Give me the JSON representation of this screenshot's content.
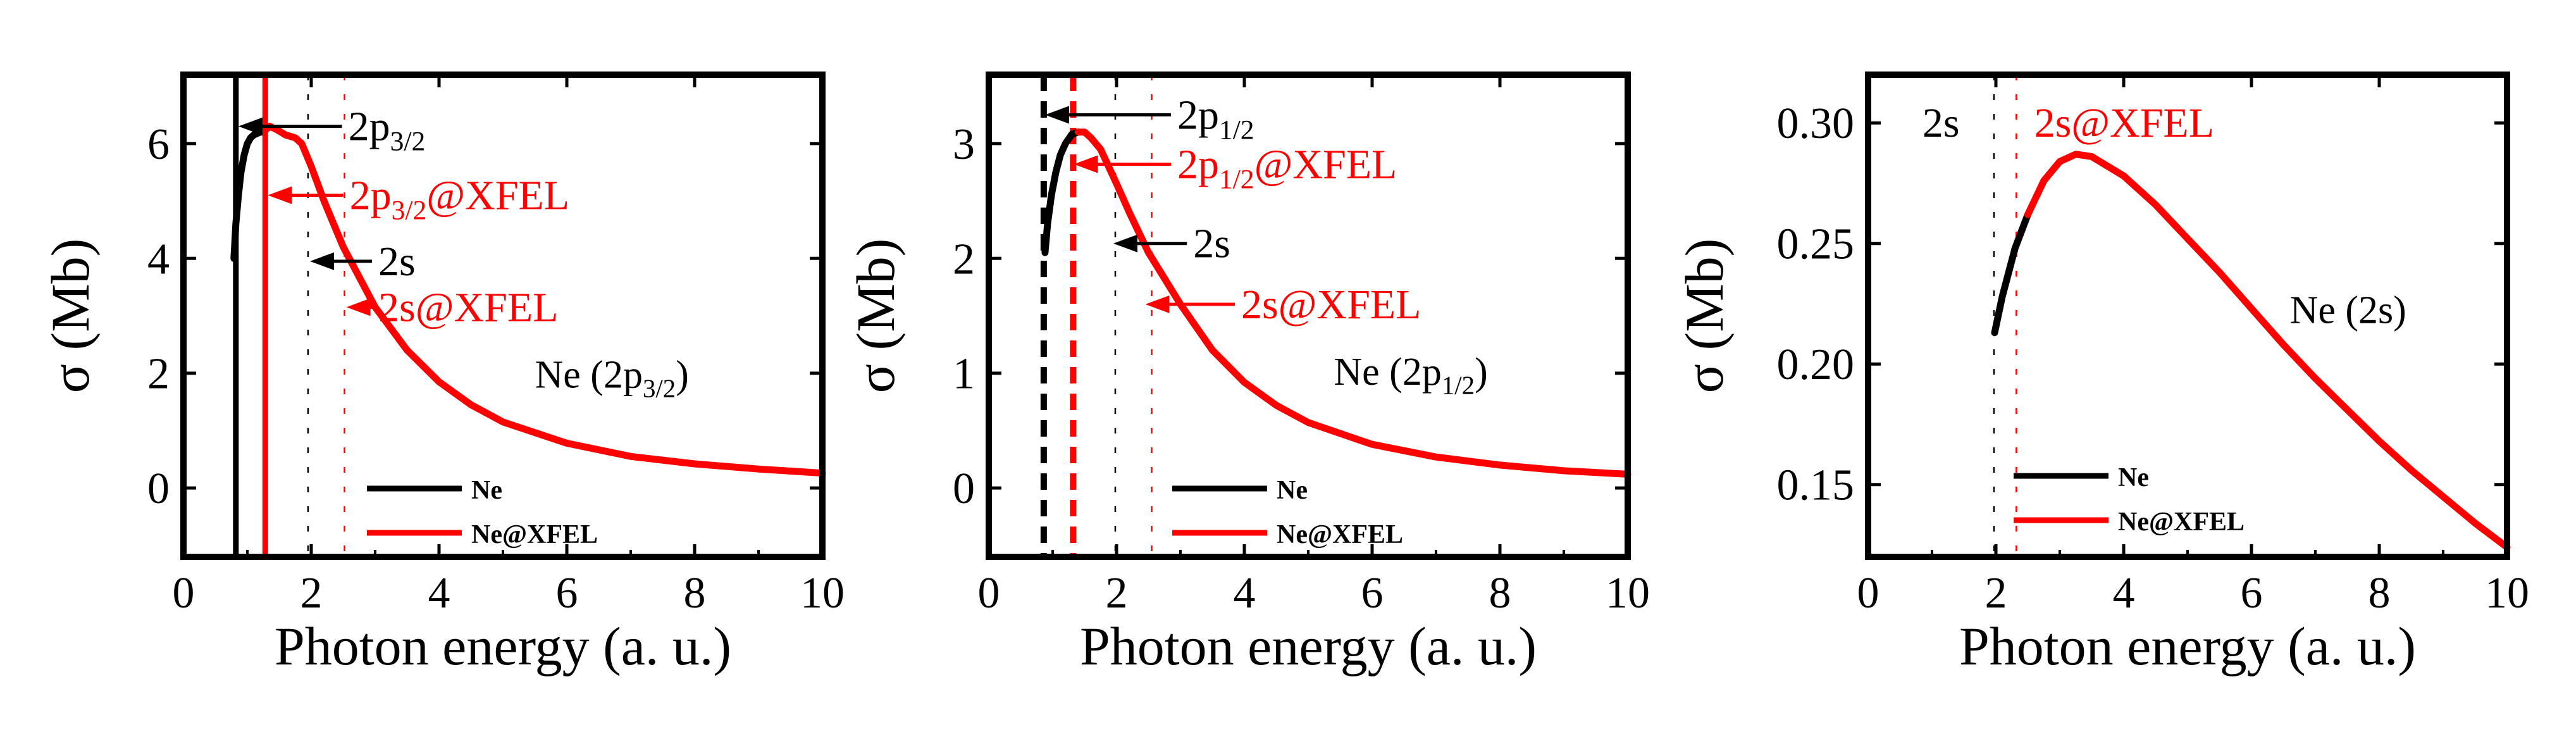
{
  "colors": {
    "ne": "#000000",
    "xfel": "#ff0000",
    "frame": "#000000",
    "background": "#ffffff"
  },
  "chart_data": [
    {
      "type": "line",
      "subplot": "left",
      "title": "",
      "xlabel": "Photon energy (a. u.)",
      "ylabel": "σ (Mb)",
      "xlim": [
        0,
        10
      ],
      "ylim": [
        -1.2,
        7.2
      ],
      "xticks": [
        0,
        2,
        4,
        6,
        8,
        10
      ],
      "yticks": [
        0,
        2,
        4,
        6
      ],
      "grid": false,
      "legend_position": "bottom-center",
      "series": [
        {
          "name": "Ne",
          "color": "#000000",
          "x": [
            0.79,
            0.82,
            0.86,
            0.9,
            0.95,
            1.0,
            1.05,
            1.1,
            1.2,
            1.25
          ],
          "y": [
            4.0,
            4.6,
            5.1,
            5.5,
            5.8,
            6.0,
            6.1,
            6.15,
            6.2,
            6.2
          ]
        },
        {
          "name": "Ne@XFEL",
          "color": "#ff0000",
          "x": [
            1.25,
            1.35,
            1.45,
            1.6,
            1.75,
            1.85,
            2.0,
            2.2,
            2.5,
            3.0,
            3.5,
            4.0,
            4.5,
            5.0,
            6.0,
            7.0,
            8.0,
            9.0,
            10.0
          ],
          "y": [
            6.2,
            6.3,
            6.25,
            6.15,
            6.1,
            6.0,
            5.6,
            5.0,
            4.2,
            3.15,
            2.4,
            1.85,
            1.45,
            1.15,
            0.78,
            0.55,
            0.42,
            0.33,
            0.26
          ]
        }
      ],
      "vertical_lines": [
        {
          "x": 0.82,
          "style": "solid",
          "color": "#000000"
        },
        {
          "x": 1.28,
          "style": "solid",
          "color": "#ff0000"
        },
        {
          "x": 1.95,
          "style": "dashed",
          "color": "#000000"
        },
        {
          "x": 2.52,
          "style": "dashed",
          "color": "#ff0000"
        }
      ],
      "annotations": [
        {
          "base": "2p",
          "sub": "3/2",
          "suffix": "",
          "color": "#000000",
          "x": 2.58,
          "y": 6.3,
          "arrow_to_x": 0.86
        },
        {
          "base": "2p",
          "sub": "3/2",
          "suffix": "@XFEL",
          "color": "#ff0000",
          "x": 2.6,
          "y": 5.1,
          "arrow_to_x": 1.32
        },
        {
          "base": "2s",
          "sub": "",
          "suffix": "",
          "color": "#000000",
          "x": 3.05,
          "y": 3.95,
          "arrow_to_x": 1.98
        },
        {
          "base": "2s@XFEL",
          "sub": "",
          "suffix": "",
          "color": "#ff0000",
          "x": 3.05,
          "y": 3.15,
          "arrow_to_x": 2.55
        }
      ],
      "inset_label": {
        "base": "Ne (2p",
        "sub": "3/2",
        "suffix": ")",
        "x": 5.5,
        "y": 1.75
      },
      "legend": [
        "Ne",
        "Ne@XFEL"
      ]
    },
    {
      "type": "line",
      "subplot": "middle",
      "title": "",
      "xlabel": "Photon energy (a. u.)",
      "ylabel": "σ (Mb)",
      "xlim": [
        0,
        10
      ],
      "ylim": [
        -0.6,
        3.6
      ],
      "xticks": [
        0,
        2,
        4,
        6,
        8,
        10
      ],
      "yticks": [
        0,
        1,
        2,
        3
      ],
      "grid": false,
      "legend_position": "bottom-center",
      "series": [
        {
          "name": "Ne",
          "color": "#000000",
          "x": [
            0.88,
            0.92,
            0.98,
            1.05,
            1.12,
            1.2,
            1.3,
            1.4
          ],
          "y": [
            2.05,
            2.3,
            2.55,
            2.75,
            2.9,
            3.0,
            3.08,
            3.1
          ]
        },
        {
          "name": "Ne@XFEL",
          "color": "#ff0000",
          "x": [
            1.4,
            1.5,
            1.6,
            1.75,
            2.0,
            2.2,
            2.5,
            3.0,
            3.5,
            4.0,
            4.5,
            5.0,
            6.0,
            7.0,
            8.0,
            9.0,
            10.0
          ],
          "y": [
            3.1,
            3.1,
            3.05,
            2.95,
            2.65,
            2.4,
            2.05,
            1.6,
            1.2,
            0.92,
            0.72,
            0.57,
            0.38,
            0.27,
            0.2,
            0.15,
            0.12
          ]
        }
      ],
      "vertical_lines": [
        {
          "x": 0.86,
          "style": "dashed-thick",
          "color": "#000000"
        },
        {
          "x": 1.32,
          "style": "dashed-thick",
          "color": "#ff0000"
        },
        {
          "x": 1.98,
          "style": "dashed",
          "color": "#000000"
        },
        {
          "x": 2.55,
          "style": "dashed",
          "color": "#ff0000"
        }
      ],
      "annotations": [
        {
          "base": "2p",
          "sub": "1/2",
          "suffix": "",
          "color": "#000000",
          "x": 2.95,
          "y": 3.25,
          "arrow_to_x": 0.88
        },
        {
          "base": "2p",
          "sub": "1/2",
          "suffix": "@XFEL",
          "color": "#ff0000",
          "x": 2.95,
          "y": 2.82,
          "arrow_to_x": 1.33
        },
        {
          "base": "2s",
          "sub": "",
          "suffix": "",
          "color": "#000000",
          "x": 3.2,
          "y": 2.13,
          "arrow_to_x": 1.95
        },
        {
          "base": "2s@XFEL",
          "sub": "",
          "suffix": "",
          "color": "#ff0000",
          "x": 3.95,
          "y": 1.6,
          "arrow_to_x": 2.45
        }
      ],
      "inset_label": {
        "base": "Ne (2p",
        "sub": "1/2",
        "suffix": ")",
        "x": 5.4,
        "y": 0.9
      },
      "legend": [
        "Ne",
        "Ne@XFEL"
      ]
    },
    {
      "type": "line",
      "subplot": "right",
      "title": "",
      "xlabel": "Photon energy (a. u.)",
      "ylabel": "σ (Mb)",
      "xlim": [
        0,
        10
      ],
      "ylim": [
        0.12,
        0.32
      ],
      "xticks": [
        0,
        2,
        4,
        6,
        8,
        10
      ],
      "yticks": [
        0.15,
        0.2,
        0.25,
        0.3
      ],
      "ytick_labels": [
        "0.15",
        "0.20",
        "0.25",
        "0.30"
      ],
      "grid": false,
      "legend_position": "bottom-left",
      "series": [
        {
          "name": "Ne",
          "color": "#000000",
          "x": [
            1.98,
            2.1,
            2.3,
            2.5
          ],
          "y": [
            0.213,
            0.228,
            0.248,
            0.262
          ]
        },
        {
          "name": "Ne@XFEL",
          "color": "#ff0000",
          "x": [
            2.5,
            2.75,
            3.0,
            3.25,
            3.5,
            4.0,
            4.5,
            5.0,
            5.5,
            6.0,
            6.5,
            7.0,
            7.5,
            8.0,
            8.5,
            9.0,
            9.5,
            10.0
          ],
          "y": [
            0.262,
            0.276,
            0.284,
            0.287,
            0.286,
            0.278,
            0.266,
            0.252,
            0.238,
            0.223,
            0.208,
            0.194,
            0.181,
            0.168,
            0.156,
            0.145,
            0.134,
            0.124
          ]
        }
      ],
      "vertical_lines": [
        {
          "x": 1.97,
          "style": "dashed",
          "color": "#000000"
        },
        {
          "x": 2.32,
          "style": "dashed",
          "color": "#ff0000"
        }
      ],
      "annotations": [
        {
          "base": "2s",
          "sub": "",
          "suffix": "",
          "color": "#000000",
          "x": 0.85,
          "y": 0.3,
          "arrow_to_x": null
        },
        {
          "base": "2s@XFEL",
          "sub": "",
          "suffix": "",
          "color": "#ff0000",
          "x": 2.6,
          "y": 0.3,
          "arrow_to_x": null
        }
      ],
      "inset_label": {
        "base": "Ne (2s)",
        "sub": "",
        "suffix": "",
        "x": 6.6,
        "y": 0.217
      },
      "legend": [
        "Ne",
        "Ne@XFEL"
      ]
    }
  ]
}
